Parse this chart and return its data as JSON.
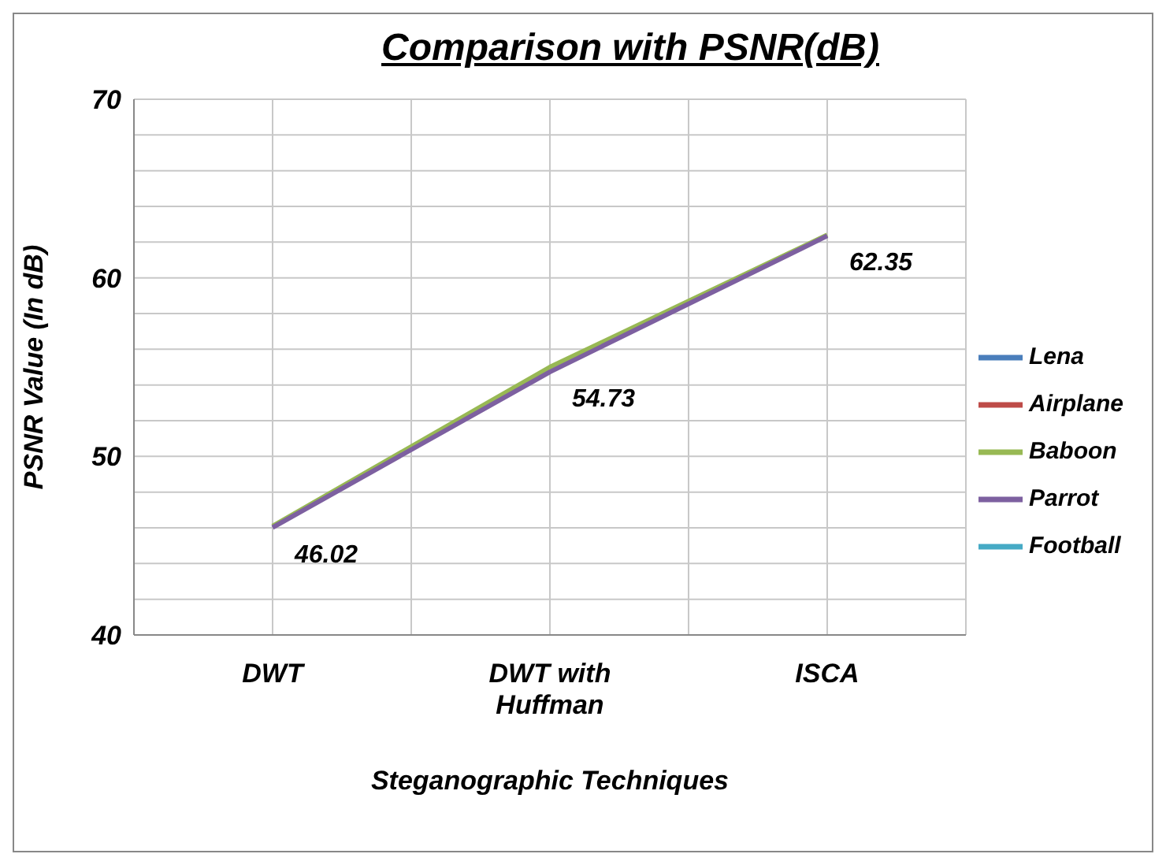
{
  "chart_data": {
    "type": "line",
    "title": "Comparison with PSNR(dB)",
    "xlabel": "Steganographic  Techniques",
    "ylabel": "PSNR Value (In dB)",
    "categories": [
      "DWT",
      "DWT with Huffman",
      "ISCA"
    ],
    "series": [
      {
        "name": "Lena",
        "color": "#4a7ebb",
        "values": [
          null,
          null,
          null
        ]
      },
      {
        "name": "Airplane",
        "color": "#be4b48",
        "values": [
          null,
          null,
          null
        ]
      },
      {
        "name": "Baboon",
        "color": "#98b954",
        "values": [
          46.1,
          55.0,
          62.4
        ]
      },
      {
        "name": "Parrot",
        "color": "#7d60a0",
        "values": [
          46.02,
          54.73,
          62.35
        ],
        "value_labels": [
          "46.02",
          "54.73",
          "62.35"
        ]
      },
      {
        "name": "Football",
        "color": "#46aac5",
        "values": [
          null,
          null,
          null
        ]
      }
    ],
    "ylim": [
      40,
      70
    ],
    "yticks": [
      40,
      {
        "value": 42,
        "label": null
      },
      {
        "value": 44,
        "label": null
      },
      {
        "value": 46,
        "label": null
      },
      {
        "value": 48,
        "label": null
      },
      50,
      {
        "value": 52,
        "label": null
      },
      {
        "value": 54,
        "label": null
      },
      {
        "value": 56,
        "label": null
      },
      {
        "value": 58,
        "label": null
      },
      60,
      {
        "value": 62,
        "label": null
      },
      {
        "value": 64,
        "label": null
      },
      {
        "value": 66,
        "label": null
      },
      {
        "value": 68,
        "label": null
      },
      70
    ],
    "grid": true,
    "legend": "right",
    "marker": "none",
    "line_style": "solid"
  }
}
